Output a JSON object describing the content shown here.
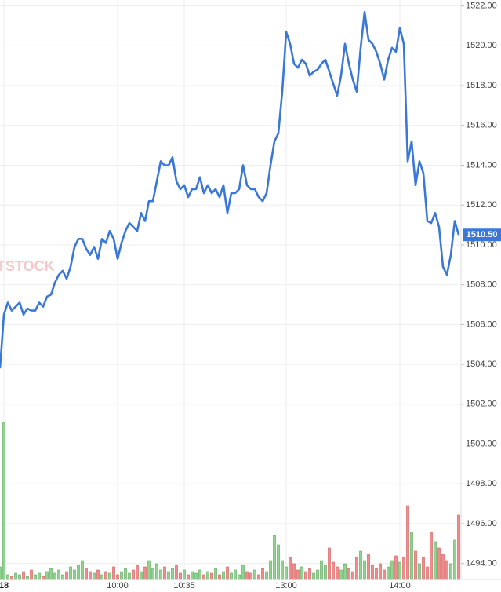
{
  "chart_data": {
    "type": "line",
    "watermark": "TSTOCK",
    "categories": [
      null,
      "18",
      null,
      null,
      null,
      null,
      null,
      null,
      null,
      null,
      null,
      null,
      null,
      null,
      null,
      null,
      null,
      null,
      null,
      null,
      null,
      null,
      null,
      null,
      null,
      null,
      null,
      null,
      null,
      null,
      "10:00",
      null,
      null,
      null,
      null,
      null,
      null,
      null,
      null,
      null,
      null,
      null,
      null,
      null,
      null,
      null,
      null,
      "10:35",
      null,
      null,
      null,
      null,
      null,
      null,
      null,
      null,
      null,
      null,
      null,
      null,
      null,
      null,
      null,
      null,
      null,
      null,
      null,
      null,
      null,
      null,
      null,
      null,
      null,
      "13:00",
      null,
      null,
      null,
      null,
      null,
      null,
      null,
      null,
      null,
      null,
      null,
      null,
      null,
      null,
      null,
      null,
      null,
      null,
      null,
      null,
      null,
      null,
      null,
      null,
      null,
      null,
      null,
      null,
      "14:00",
      null,
      null,
      null,
      null,
      null,
      null,
      null,
      null,
      null,
      null,
      null,
      null,
      null,
      null,
      null
    ],
    "ylim": [
      1493.2,
      1522.3
    ],
    "yticks": [
      {
        "value": 1494,
        "label": "1494.00"
      },
      {
        "value": 1496,
        "label": "1496.00"
      },
      {
        "value": 1498,
        "label": "1498.00"
      },
      {
        "value": 1500,
        "label": "1500.00"
      },
      {
        "value": 1502,
        "label": "1502.00"
      },
      {
        "value": 1504,
        "label": "1504.00"
      },
      {
        "value": 1506,
        "label": "1506.00"
      },
      {
        "value": 1508,
        "label": "1508.00"
      },
      {
        "value": 1510,
        "label": "1510.00"
      },
      {
        "value": 1512,
        "label": "1512.00"
      },
      {
        "value": 1514,
        "label": "1514.00"
      },
      {
        "value": 1516,
        "label": "1516.00"
      },
      {
        "value": 1518,
        "label": "1518.00"
      },
      {
        "value": 1520,
        "label": "1520.00"
      },
      {
        "value": 1522,
        "label": "1522.00"
      }
    ],
    "y2lim": [
      0,
      100
    ],
    "grid": true,
    "last_price": {
      "value": 1510.5,
      "label": "1510.50",
      "color": "#3a77d6"
    },
    "series": [
      {
        "color": "#3a77d6",
        "values": [
          1503.8,
          1506.5,
          1507.1,
          1506.7,
          1506.9,
          1507.1,
          1506.5,
          1506.8,
          1506.7,
          1506.7,
          1507.1,
          1506.9,
          1507.4,
          1507.5,
          1508.1,
          1508.5,
          1508.7,
          1508.3,
          1508.9,
          1509.9,
          1510.3,
          1510.3,
          1509.8,
          1509.5,
          1509.9,
          1509.3,
          1510.3,
          1510.1,
          1510.7,
          1510.3,
          1509.3,
          1510.1,
          1510.7,
          1511.1,
          1510.9,
          1510.7,
          1511.6,
          1511.2,
          1512.2,
          1512.2,
          1513.2,
          1514.2,
          1514.0,
          1514.0,
          1514.4,
          1513.2,
          1512.8,
          1513.0,
          1512.4,
          1512.8,
          1512.8,
          1513.4,
          1512.6,
          1513.0,
          1512.6,
          1512.8,
          1512.4,
          1513.0,
          1511.6,
          1512.6,
          1512.6,
          1512.8,
          1514.0,
          1513.0,
          1512.8,
          1512.8,
          1512.4,
          1512.2,
          1512.6,
          1514.0,
          1515.2,
          1515.6,
          1517.7,
          1520.7,
          1520.1,
          1519.1,
          1518.9,
          1519.3,
          1519.1,
          1518.5,
          1518.7,
          1518.8,
          1519.1,
          1519.3,
          1518.7,
          1518.1,
          1517.5,
          1518.5,
          1520.1,
          1519.1,
          1518.3,
          1517.7,
          1519.9,
          1521.7,
          1520.3,
          1520.1,
          1519.7,
          1519.1,
          1518.3,
          1519.3,
          1519.9,
          1519.7,
          1520.9,
          1520.1,
          1514.2,
          1515.2,
          1513.0,
          1514.2,
          1513.6,
          1511.2,
          1511.1,
          1511.6,
          1510.9,
          1508.9,
          1508.5,
          1509.5,
          1511.2,
          1510.5
        ]
      },
      {
        "type": "bar",
        "axis": "y2",
        "up_color": "#8fd48f",
        "down_color": "#f28b8b",
        "values": [
          8,
          100,
          3,
          2,
          4,
          3,
          5,
          2,
          6,
          3,
          4,
          2,
          5,
          7,
          4,
          6,
          3,
          5,
          8,
          6,
          9,
          12,
          7,
          5,
          4,
          6,
          3,
          5,
          4,
          8,
          3,
          5,
          7,
          4,
          6,
          9,
          5,
          8,
          12,
          7,
          10,
          6,
          8,
          5,
          7,
          9,
          4,
          6,
          3,
          5,
          4,
          6,
          3,
          5,
          4,
          7,
          3,
          5,
          8,
          4,
          6,
          3,
          9,
          5,
          4,
          6,
          3,
          7,
          5,
          12,
          28,
          22,
          12,
          8,
          14,
          10,
          6,
          8,
          5,
          7,
          4,
          6,
          12,
          9,
          20,
          11,
          8,
          6,
          10,
          7,
          5,
          14,
          18,
          12,
          16,
          9,
          7,
          10,
          6,
          8,
          12,
          15,
          11,
          14,
          47,
          30,
          18,
          10,
          14,
          8,
          30,
          24,
          20,
          16,
          12,
          10,
          25,
          41
        ]
      }
    ]
  }
}
